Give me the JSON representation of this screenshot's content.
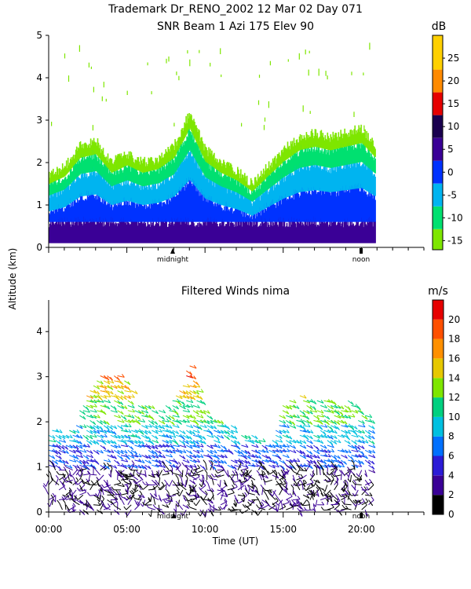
{
  "header": {
    "title_line1": "Trademark Dr_RENO_2002  12 Mar 02 Day 071",
    "title_line2": "SNR Beam 1 Azi 175 Elev 90"
  },
  "y_axis_label": "Altitude (km)",
  "x_axis_label": "Time (UT)",
  "markers": {
    "midnight": "midnight",
    "noon": "noon"
  },
  "colors": {
    "snr_scale": [
      "#7ee600",
      "#00e070",
      "#00b4f0",
      "#0032ff",
      "#3a0096",
      "#1a004f",
      "#e60000",
      "#ff8a00",
      "#ffd000"
    ],
    "wind_scale": [
      "#000000",
      "#3a0096",
      "#2b1bd6",
      "#0070ff",
      "#00c0e0",
      "#00d080",
      "#7ee600",
      "#e6c800",
      "#ff9000",
      "#ff5000",
      "#e60000"
    ]
  },
  "chart_data": [
    {
      "type": "heatmap",
      "title": "SNR Beam 1 Azi 175 Elev 90",
      "ylabel": "Altitude (km)",
      "ylim": [
        0,
        5
      ],
      "yticks": [
        "0",
        "1",
        "2",
        "3",
        "4",
        "5"
      ],
      "colorbar": {
        "unit": "dB",
        "levels": [
          "-15",
          "-10",
          "-5",
          "0",
          "5",
          "10",
          "15",
          "20",
          "25"
        ],
        "range": [
          -17,
          30
        ]
      },
      "echo_top_km": [
        {
          "hour": 0.0,
          "km": 1.7
        },
        {
          "hour": 1.0,
          "km": 1.9
        },
        {
          "hour": 2.0,
          "km": 2.4
        },
        {
          "hour": 3.0,
          "km": 2.5
        },
        {
          "hour": 4.0,
          "km": 2.0
        },
        {
          "hour": 5.0,
          "km": 2.2
        },
        {
          "hour": 6.0,
          "km": 2.0
        },
        {
          "hour": 7.0,
          "km": 2.1
        },
        {
          "hour": 8.0,
          "km": 2.4
        },
        {
          "hour": 9.0,
          "km": 3.2
        },
        {
          "hour": 10.0,
          "km": 2.3
        },
        {
          "hour": 11.0,
          "km": 2.0
        },
        {
          "hour": 12.0,
          "km": 1.8
        },
        {
          "hour": 13.0,
          "km": 1.5
        },
        {
          "hour": 14.0,
          "km": 1.9
        },
        {
          "hour": 15.0,
          "km": 2.3
        },
        {
          "hour": 16.0,
          "km": 2.6
        },
        {
          "hour": 17.0,
          "km": 2.7
        },
        {
          "hour": 18.0,
          "km": 2.6
        },
        {
          "hour": 19.0,
          "km": 2.7
        },
        {
          "hour": 20.0,
          "km": 2.8
        },
        {
          "hour": 20.9,
          "km": 2.4
        }
      ]
    },
    {
      "type": "scatter",
      "title": "Filtered Winds nima",
      "xlabel": "Time (UT)",
      "ylabel": "Altitude (km)",
      "xlim": [
        0,
        24
      ],
      "ylim": [
        0,
        4.7
      ],
      "xticks": [
        "00:00",
        "05:00",
        "10:00",
        "15:00",
        "20:00"
      ],
      "yticks": [
        "0",
        "1",
        "2",
        "3",
        "4"
      ],
      "colorbar": {
        "unit": "m/s",
        "levels": [
          "0",
          "2",
          "4",
          "6",
          "8",
          "10",
          "12",
          "14",
          "16",
          "18",
          "20"
        ],
        "range": [
          0,
          22
        ]
      },
      "wind_top_km": [
        {
          "hour": 0.0,
          "km": 1.9
        },
        {
          "hour": 1.0,
          "km": 1.7
        },
        {
          "hour": 2.0,
          "km": 2.3
        },
        {
          "hour": 3.0,
          "km": 3.0
        },
        {
          "hour": 4.0,
          "km": 3.1
        },
        {
          "hour": 5.0,
          "km": 2.9
        },
        {
          "hour": 6.0,
          "km": 2.4
        },
        {
          "hour": 7.0,
          "km": 2.3
        },
        {
          "hour": 8.0,
          "km": 2.5
        },
        {
          "hour": 9.0,
          "km": 3.3
        },
        {
          "hour": 10.0,
          "km": 2.2
        },
        {
          "hour": 11.0,
          "km": 2.0
        },
        {
          "hour": 12.0,
          "km": 1.9
        },
        {
          "hour": 13.0,
          "km": 1.7
        },
        {
          "hour": 14.0,
          "km": 1.5
        },
        {
          "hour": 15.0,
          "km": 2.4
        },
        {
          "hour": 16.0,
          "km": 2.6
        },
        {
          "hour": 17.0,
          "km": 2.5
        },
        {
          "hour": 18.0,
          "km": 2.5
        },
        {
          "hour": 19.0,
          "km": 2.6
        },
        {
          "hour": 20.0,
          "km": 2.2
        }
      ],
      "wind_bands": [
        {
          "km_min": 0.0,
          "km_max": 1.0,
          "speed_ms": 2
        },
        {
          "km_min": 1.0,
          "km_max": 1.5,
          "speed_ms": 6
        },
        {
          "km_min": 1.5,
          "km_max": 2.0,
          "speed_ms": 9
        },
        {
          "km_min": 2.0,
          "km_max": 2.5,
          "speed_ms": 12
        },
        {
          "km_min": 2.5,
          "km_max": 3.0,
          "speed_ms": 15
        },
        {
          "km_min": 3.0,
          "km_max": 3.6,
          "speed_ms": 20
        }
      ]
    }
  ]
}
